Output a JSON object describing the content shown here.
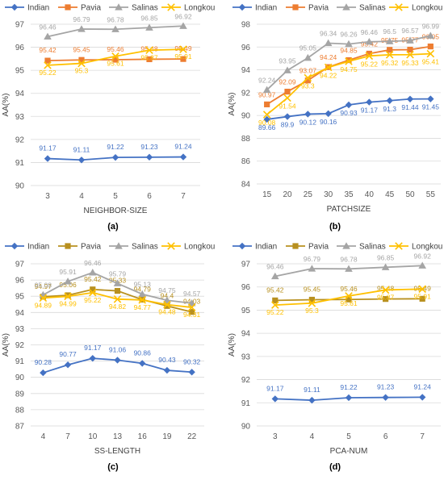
{
  "figure": {
    "panels": [
      "(a)",
      "(b)",
      "(c)",
      "(d)"
    ]
  },
  "chart_data": [
    {
      "type": "line",
      "panel": "(a)",
      "xlabel": "NEIGHBOR-SIZE",
      "ylabel": "AA(%)",
      "x": [
        3,
        4,
        5,
        6,
        7
      ],
      "ylim": [
        90,
        97
      ],
      "yticks": [
        90,
        91,
        92,
        93,
        94,
        95,
        96,
        97
      ],
      "legend": "top",
      "series": [
        {
          "name": "Indian",
          "color": "#4472c4",
          "marker": "diamond",
          "values": [
            91.17,
            91.11,
            91.22,
            91.23,
            91.24
          ]
        },
        {
          "name": "Pavia",
          "color": "#ed7d31",
          "marker": "square",
          "values": [
            95.42,
            95.45,
            95.46,
            95.48,
            95.49
          ]
        },
        {
          "name": "Salinas",
          "color": "#a5a5a5",
          "marker": "triangle",
          "values": [
            96.46,
            96.79,
            96.78,
            96.85,
            96.92
          ]
        },
        {
          "name": "Longkou",
          "color": "#ffc000",
          "marker": "x",
          "values": [
            95.22,
            95.3,
            95.61,
            95.87,
            95.91
          ]
        }
      ]
    },
    {
      "type": "line",
      "panel": "(b)",
      "xlabel": "PATCHSIZE",
      "ylabel": "AA(%)",
      "x": [
        15,
        20,
        25,
        30,
        35,
        40,
        45,
        50,
        55
      ],
      "ylim": [
        84,
        98
      ],
      "yticks": [
        84,
        86,
        88,
        90,
        92,
        94,
        96,
        98
      ],
      "legend": "top",
      "series": [
        {
          "name": "Indian",
          "color": "#4472c4",
          "marker": "diamond",
          "values": [
            89.66,
            89.9,
            90.12,
            90.16,
            90.93,
            91.17,
            91.3,
            91.44,
            91.45
          ]
        },
        {
          "name": "Pavia",
          "color": "#ed7d31",
          "marker": "square",
          "values": [
            90.97,
            92.09,
            93.07,
            94.24,
            94.85,
            95.42,
            95.75,
            95.77,
            96.05
          ]
        },
        {
          "name": "Salinas",
          "color": "#a5a5a5",
          "marker": "triangle",
          "values": [
            92.24,
            93.95,
            95.05,
            96.34,
            96.26,
            96.46,
            96.5,
            96.57,
            96.99
          ]
        },
        {
          "name": "Longkou",
          "color": "#ffc000",
          "marker": "x",
          "values": [
            90.08,
            91.54,
            93.3,
            94.22,
            94.75,
            95.22,
            95.32,
            95.33,
            95.41
          ]
        }
      ]
    },
    {
      "type": "line",
      "panel": "(c)",
      "xlabel": "SS-LENGTH",
      "ylabel": "AA(%)",
      "x": [
        4,
        7,
        10,
        13,
        16,
        19,
        22
      ],
      "ylim": [
        87,
        97
      ],
      "yticks": [
        87,
        88,
        89,
        90,
        91,
        92,
        93,
        94,
        95,
        96,
        97
      ],
      "legend": "top",
      "series": [
        {
          "name": "Indian",
          "color": "#4472c4",
          "marker": "diamond",
          "values": [
            90.28,
            90.77,
            91.17,
            91.06,
            90.86,
            90.43,
            90.32
          ]
        },
        {
          "name": "Pavia",
          "color": "#b8901f",
          "marker": "square",
          "values": [
            94.97,
            95.06,
            95.42,
            95.33,
            94.79,
            94.4,
            94.03
          ]
        },
        {
          "name": "Salinas",
          "color": "#a5a5a5",
          "marker": "triangle",
          "values": [
            95.08,
            95.91,
            96.46,
            95.79,
            95.13,
            94.75,
            94.57
          ]
        },
        {
          "name": "Longkou",
          "color": "#ffc000",
          "marker": "x",
          "values": [
            94.89,
            94.99,
            95.22,
            94.82,
            94.77,
            94.48,
            94.31
          ]
        }
      ]
    },
    {
      "type": "line",
      "panel": "(d)",
      "xlabel": "PCA-NUM",
      "ylabel": "AA(%)",
      "x": [
        3,
        4,
        5,
        6,
        7
      ],
      "ylim": [
        90,
        97
      ],
      "yticks": [
        90,
        91,
        92,
        93,
        94,
        95,
        96,
        97
      ],
      "legend": "top",
      "series": [
        {
          "name": "Indian",
          "color": "#4472c4",
          "marker": "diamond",
          "values": [
            91.17,
            91.11,
            91.22,
            91.23,
            91.24
          ]
        },
        {
          "name": "Pavia",
          "color": "#b8901f",
          "marker": "square",
          "values": [
            95.42,
            95.45,
            95.46,
            95.48,
            95.49
          ]
        },
        {
          "name": "Salinas",
          "color": "#a5a5a5",
          "marker": "triangle",
          "values": [
            96.46,
            96.79,
            96.78,
            96.85,
            96.92
          ]
        },
        {
          "name": "Longkou",
          "color": "#ffc000",
          "marker": "x",
          "values": [
            95.22,
            95.3,
            95.61,
            95.87,
            95.91
          ]
        }
      ]
    }
  ]
}
